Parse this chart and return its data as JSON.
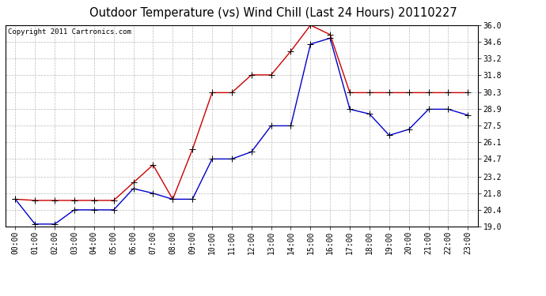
{
  "title": "Outdoor Temperature (vs) Wind Chill (Last 24 Hours) 20110227",
  "copyright": "Copyright 2011 Cartronics.com",
  "hours": [
    "00:00",
    "01:00",
    "02:00",
    "03:00",
    "04:00",
    "05:00",
    "06:00",
    "07:00",
    "08:00",
    "09:00",
    "10:00",
    "11:00",
    "12:00",
    "13:00",
    "14:00",
    "15:00",
    "16:00",
    "17:00",
    "18:00",
    "19:00",
    "20:00",
    "21:00",
    "22:00",
    "23:00"
  ],
  "temp": [
    21.3,
    19.2,
    19.2,
    20.4,
    20.4,
    20.4,
    22.2,
    21.8,
    21.3,
    21.3,
    24.7,
    24.7,
    25.3,
    27.5,
    27.5,
    34.4,
    34.9,
    28.9,
    28.5,
    26.7,
    27.2,
    28.9,
    28.9,
    28.4
  ],
  "windchill": [
    21.3,
    21.2,
    21.2,
    21.2,
    21.2,
    21.2,
    22.7,
    24.2,
    21.3,
    25.5,
    30.3,
    30.3,
    31.8,
    31.8,
    33.8,
    36.0,
    35.2,
    30.3,
    30.3,
    30.3,
    30.3,
    30.3,
    30.3,
    30.3
  ],
  "temp_color": "#0000cc",
  "windchill_color": "#cc0000",
  "ylim_min": 19.0,
  "ylim_max": 36.0,
  "yticks": [
    19.0,
    20.4,
    21.8,
    23.2,
    24.7,
    26.1,
    27.5,
    28.9,
    30.3,
    31.8,
    33.2,
    34.6,
    36.0
  ],
  "bg_color": "#ffffff",
  "plot_bg_color": "#ffffff",
  "grid_color": "#bbbbbb",
  "title_fontsize": 10.5,
  "copyright_fontsize": 6.5,
  "tick_fontsize": 7,
  "marker_size": 3,
  "line_width": 1.0
}
